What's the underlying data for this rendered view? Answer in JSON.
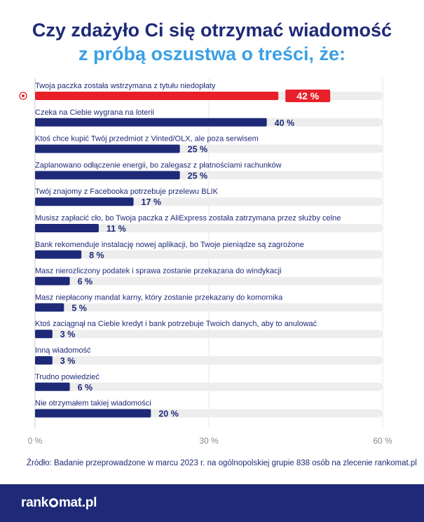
{
  "title_line1": "Czy zdażyło Ci się otrzymać wiadomość",
  "title_line2": "z próbą oszustwa o treści, że:",
  "chart_data": {
    "type": "bar",
    "orientation": "horizontal",
    "categories": [
      "Twoja paczka została wstrzymana z tytułu niedopłaty",
      "Czeka na Ciebie wygrana na loterii",
      "Ktoś chce kupić Twój przedmiot z Vinted/OLX, ale poza serwisem",
      "Zaplanowano odłączenie energii, bo zalegasz z płatnościami rachunków",
      "Twój znajomy z Facebooka potrzebuje przelewu BLIK",
      "Musisz zapłacić cło, bo Twoja paczka z AliExpress została zatrzymana przez służby celne",
      "Bank rekomenduje instalację nowej aplikacji, bo Twoje pieniądze są zagrożone",
      "Masz nierozliczony podatek i sprawa zostanie przekazana do windykacji",
      "Masz niepłacony mandat karny, który zostanie przekazany do komornika",
      "Ktoś zaciągnął na Ciebie kredyt i bank potrzebuje Twoich danych, aby to anulować",
      "Inną wiadomość",
      "Trudno powiedzieć",
      "Nie otrzymałem takiej wiadomości"
    ],
    "values": [
      42,
      40,
      25,
      25,
      17,
      11,
      8,
      6,
      5,
      3,
      3,
      6,
      20
    ],
    "value_labels": [
      "42 %",
      "40 %",
      "25 %",
      "25 %",
      "17 %",
      "11 %",
      "8 %",
      "6 %",
      "5 %",
      "3 %",
      "3 %",
      "6 %",
      "20 %"
    ],
    "xlim": [
      0,
      60
    ],
    "xticks": [
      0,
      30,
      60
    ],
    "xtick_labels": [
      "0 %",
      "30 %",
      "60 %"
    ],
    "highlight_index": 0,
    "grid": "vertical"
  },
  "colors": {
    "bar": "#1e2a78",
    "highlight": "#e8202a",
    "track": "#ededed",
    "label": "#1e2a78"
  },
  "source": "Źródło: Badanie przeprowadzone w marcu 2023 r. na ogólnopolskiej grupie 838 osób na zlecenie rankomat.pl",
  "brand": {
    "part1": "rank",
    "part2": "mat.pl"
  }
}
